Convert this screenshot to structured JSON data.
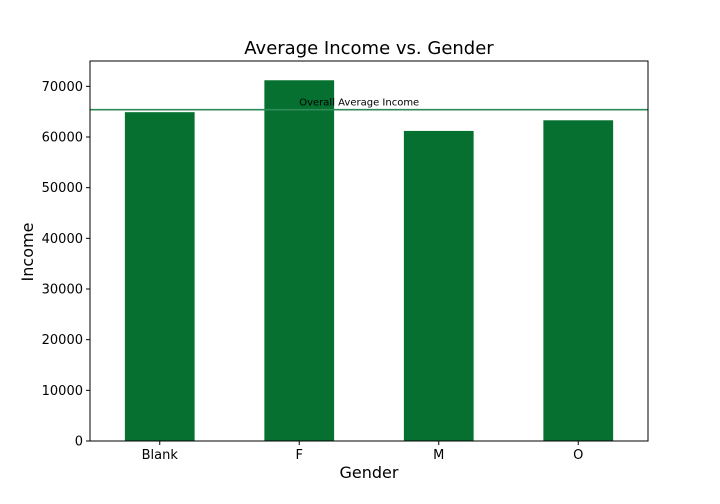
{
  "chart_data": {
    "type": "bar",
    "title": "Average Income vs. Gender",
    "xlabel": "Gender",
    "ylabel": "Income",
    "categories": [
      "Blank",
      "F",
      "M",
      "O"
    ],
    "values": [
      64900,
      71200,
      61200,
      63300
    ],
    "ylim": [
      0,
      75000
    ],
    "yticks": [
      0,
      10000,
      20000,
      30000,
      40000,
      50000,
      60000,
      70000
    ],
    "bar_color": "#067030",
    "grid": false,
    "reference_line": {
      "label": "Overall Average Income",
      "value": 65400,
      "color": "#2e8b57"
    }
  }
}
